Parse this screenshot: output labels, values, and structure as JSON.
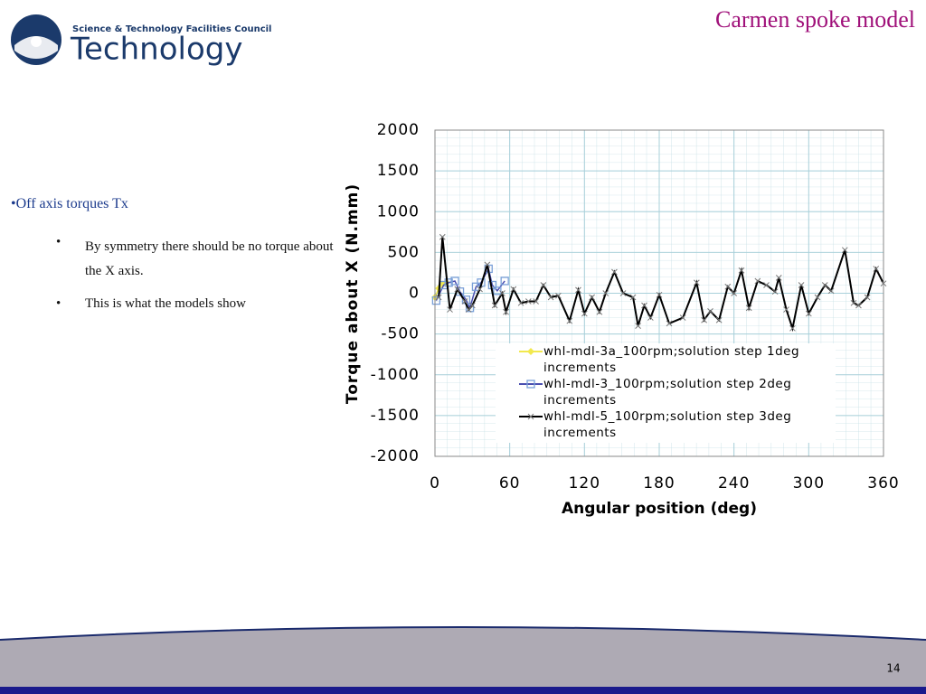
{
  "logo": {
    "line1": "Science & Technology Facilities Council",
    "line2": "Technology"
  },
  "title": "Carmen spoke model",
  "bullets": {
    "main": "•Off axis torques Tx",
    "sub": [
      "By symmetry there should be no torque about the X axis.",
      "This is what the models show"
    ]
  },
  "page_number": "14",
  "chart_data": {
    "type": "line",
    "xlabel": "Angular position (deg)",
    "ylabel": "Torque  about X  (N.mm)",
    "xlim": [
      0,
      360
    ],
    "xticks": [
      0,
      60,
      120,
      180,
      240,
      300,
      360
    ],
    "ylim": [
      -2000,
      2000
    ],
    "yticks": [
      -2000,
      -1500,
      -1000,
      -500,
      0,
      500,
      1000,
      1500,
      2000
    ],
    "grid": true,
    "legend": "lower-right",
    "series": [
      {
        "name": "whl-mdl-3a_100rpm;solution  step 1deg increments",
        "color": "#f2e94e",
        "marker": "diamond",
        "x": [
          0,
          3,
          6,
          9
        ],
        "values": [
          -50,
          60,
          110,
          130
        ]
      },
      {
        "name": "whl-mdl-3_100rpm;solution  step 2deg increments",
        "color": "#4a4fb0",
        "marker": "square",
        "x": [
          1,
          7,
          11,
          16,
          20,
          25,
          28,
          33,
          37,
          43,
          46,
          50,
          56
        ],
        "values": [
          -90,
          100,
          130,
          150,
          20,
          -80,
          -180,
          80,
          130,
          300,
          100,
          30,
          150
        ]
      },
      {
        "name": "whl-mdl-5_100rpm;solution  step 3deg increments",
        "color": "#000000",
        "marker": "x",
        "x": [
          3,
          6,
          12,
          18,
          24,
          27,
          30,
          36,
          42,
          48,
          54,
          57,
          63,
          69,
          75,
          81,
          87,
          93,
          99,
          108,
          115,
          120,
          126,
          132,
          137,
          144,
          151,
          159,
          163,
          168,
          173,
          180,
          188,
          199,
          210,
          216,
          221,
          228,
          235,
          240,
          246,
          252,
          259,
          266,
          273,
          276,
          282,
          287,
          294,
          300,
          307,
          313,
          318,
          329,
          336,
          340,
          347,
          354,
          360
        ],
        "values": [
          -50,
          690,
          -200,
          50,
          -100,
          -200,
          -150,
          50,
          350,
          -150,
          0,
          -230,
          50,
          -120,
          -100,
          -100,
          100,
          -50,
          -30,
          -340,
          40,
          -250,
          -50,
          -230,
          0,
          260,
          0,
          -50,
          -400,
          -150,
          -300,
          -20,
          -370,
          -300,
          130,
          -330,
          -220,
          -330,
          80,
          0,
          280,
          -180,
          150,
          100,
          20,
          190,
          -200,
          -430,
          100,
          -250,
          -50,
          100,
          30,
          530,
          -120,
          -150,
          -50,
          300,
          120
        ]
      }
    ]
  }
}
